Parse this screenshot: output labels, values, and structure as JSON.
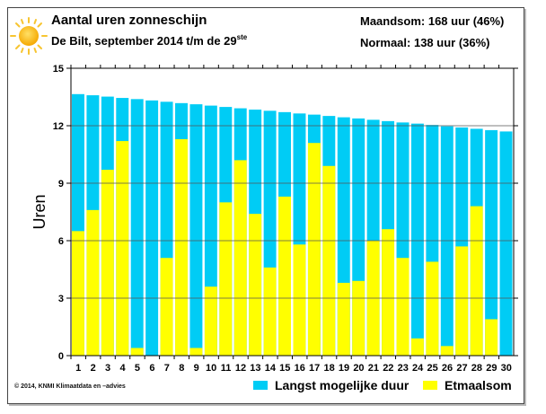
{
  "header": {
    "title": "Aantal uren zonneschijn",
    "subtitle_main": "De Bilt, september 2014 t/m de 29",
    "subtitle_sup": "ste",
    "stat_month": "Maandsom: 168 uur (46%)",
    "stat_normal": "Normaal: 138 uur (36%)",
    "icon": "sun-icon"
  },
  "footer": {
    "copyright": "© 2014, KNMI Klimaatdata en –advies"
  },
  "colors": {
    "max_duration": "#00ccf5",
    "daily_sum": "#ffff00",
    "grid": "#555555"
  },
  "chart_data": {
    "type": "bar",
    "title": "Aantal uren zonneschijn",
    "xlabel": "",
    "ylabel": "Uren",
    "ylim": [
      0,
      15
    ],
    "yticks": [
      "0",
      "3",
      "6",
      "9",
      "12",
      "15"
    ],
    "grid": true,
    "legend_position": "bottom-right",
    "categories": [
      "1",
      "2",
      "3",
      "4",
      "5",
      "6",
      "7",
      "8",
      "9",
      "10",
      "11",
      "12",
      "13",
      "14",
      "15",
      "16",
      "17",
      "18",
      "19",
      "20",
      "21",
      "22",
      "23",
      "24",
      "25",
      "26",
      "27",
      "28",
      "29",
      "30"
    ],
    "series": [
      {
        "name": "Langst mogelijke duur",
        "values": [
          13.65,
          13.59,
          13.52,
          13.45,
          13.39,
          13.32,
          13.25,
          13.18,
          13.12,
          13.05,
          12.98,
          12.91,
          12.84,
          12.78,
          12.71,
          12.64,
          12.58,
          12.51,
          12.44,
          12.38,
          12.31,
          12.24,
          12.17,
          12.11,
          12.04,
          11.97,
          11.91,
          11.84,
          11.77,
          11.7
        ]
      },
      {
        "name": "Etmaalsom",
        "values": [
          6.5,
          7.6,
          9.7,
          11.2,
          0.4,
          0.0,
          5.1,
          11.3,
          0.4,
          3.6,
          8.0,
          10.2,
          7.4,
          4.6,
          8.3,
          5.8,
          11.1,
          9.9,
          3.8,
          3.9,
          6.0,
          6.6,
          5.1,
          0.9,
          4.9,
          0.5,
          5.7,
          7.8,
          1.9,
          0.0
        ]
      }
    ]
  }
}
